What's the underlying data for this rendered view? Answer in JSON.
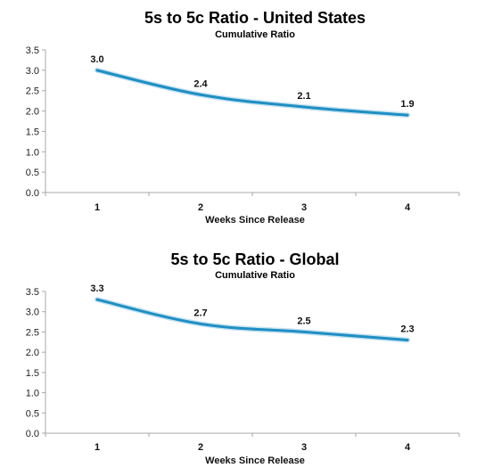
{
  "chart_data": [
    {
      "type": "line",
      "title": "5s to 5c Ratio - United States",
      "subtitle": "Cumulative Ratio",
      "xlabel": "Weeks Since Release",
      "ylabel": "",
      "categories": [
        "1",
        "2",
        "3",
        "4"
      ],
      "values": [
        3.0,
        2.4,
        2.1,
        1.9
      ],
      "data_labels": [
        "3.0",
        "2.4",
        "2.1",
        "1.9"
      ],
      "ylim": [
        0,
        3.5
      ],
      "yticks": [
        "0.0",
        "0.5",
        "1.0",
        "1.5",
        "2.0",
        "2.5",
        "3.0",
        "3.5"
      ],
      "grid": false,
      "line_color": "#1f8fc4"
    },
    {
      "type": "line",
      "title": "5s to 5c Ratio - Global",
      "subtitle": "Cumulative Ratio",
      "xlabel": "Weeks Since Release",
      "ylabel": "",
      "categories": [
        "1",
        "2",
        "3",
        "4"
      ],
      "values": [
        3.3,
        2.7,
        2.5,
        2.3
      ],
      "data_labels": [
        "3.3",
        "2.7",
        "2.5",
        "2.3"
      ],
      "ylim": [
        0,
        3.5
      ],
      "yticks": [
        "0.0",
        "0.5",
        "1.0",
        "1.5",
        "2.0",
        "2.5",
        "3.0",
        "3.5"
      ],
      "grid": false,
      "line_color": "#1f8fc4"
    }
  ]
}
